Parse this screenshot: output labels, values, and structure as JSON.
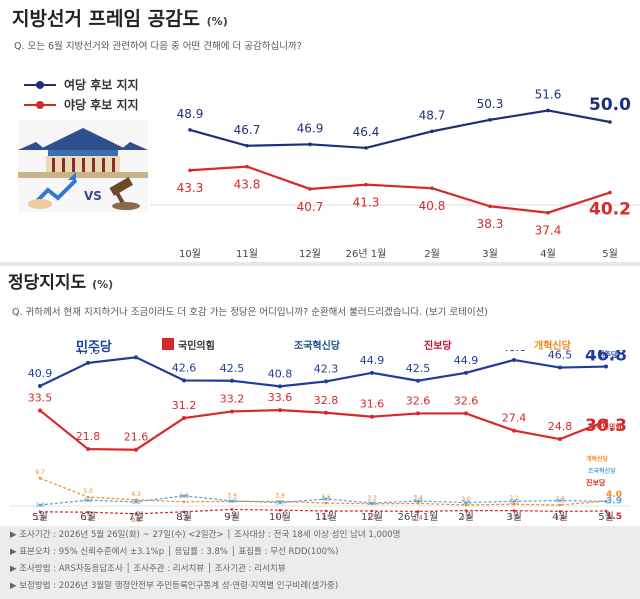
{
  "chart1": {
    "title": "지방선거 프레임 공감도",
    "unit": "(%)",
    "question": "Q. 오는 6월 지방선거와 관련하여 다음 중 어떤 견해에 더 공감하십니까?",
    "legend": [
      {
        "label": "여당 후보 지지",
        "color": "#1f2f7a"
      },
      {
        "label": "야당 후보 지지",
        "color": "#d62a2a"
      }
    ]
  },
  "chart2": {
    "title": "정당지지도",
    "unit": "(%)",
    "question": "Q. 귀하께서 현재 지지하거나 조금이라도 더 호감 가는 정당은 어디입니까? 순환해서 불러드리겠습니다. (보기 로테이션)",
    "parties": [
      {
        "label": "민주당",
        "color": "#1f3d9a"
      },
      {
        "label": "국민의힘",
        "color": "#d62a2a"
      },
      {
        "label": "조국혁신당",
        "color": "#1a4e8c"
      },
      {
        "label": "진보당",
        "color": "#c8102e"
      },
      {
        "label": "개혁신당",
        "color": "#f28c1e"
      }
    ],
    "end_labels": [
      {
        "label": "민주당",
        "color": "#1f3d9a"
      },
      {
        "label": "국민의힘",
        "color": "#d62a2a"
      },
      {
        "label": "조국혁신당",
        "color": "#5aa0d8"
      },
      {
        "label": "개혁신당",
        "color": "#f28c1e"
      },
      {
        "label": "진보당",
        "color": "#d62a2a"
      }
    ]
  },
  "chart_data": [
    {
      "type": "line",
      "title": "지방선거 프레임 공감도",
      "x": [
        "10월",
        "11월",
        "12월",
        "26년 1월",
        "2월",
        "3월",
        "4월",
        "5월"
      ],
      "series": [
        {
          "name": "여당 후보 지지",
          "color": "#1f2f7a",
          "values": [
            48.9,
            46.7,
            46.9,
            46.4,
            48.7,
            50.3,
            51.6,
            50.0
          ]
        },
        {
          "name": "야당 후보 지지",
          "color": "#d62a2a",
          "values": [
            43.3,
            43.8,
            40.7,
            41.3,
            40.8,
            38.3,
            37.4,
            40.2
          ]
        }
      ]
    },
    {
      "type": "line",
      "title": "정당지지도",
      "x": [
        "5월",
        "6월",
        "7월",
        "8월",
        "9월",
        "10월",
        "11월",
        "12월",
        "26년 1월",
        "2월",
        "3월",
        "4월",
        "5월"
      ],
      "series": [
        {
          "name": "민주당",
          "color": "#1f3d9a",
          "values": [
            40.9,
            47.9,
            49.6,
            42.6,
            42.5,
            40.8,
            42.3,
            44.9,
            42.5,
            44.9,
            48.8,
            46.5,
            46.8
          ]
        },
        {
          "name": "국민의힘",
          "color": "#d62a2a",
          "values": [
            33.5,
            21.8,
            21.6,
            31.2,
            33.2,
            33.6,
            32.8,
            31.6,
            32.6,
            32.6,
            27.4,
            24.8,
            30.3
          ]
        },
        {
          "name": "개혁신당",
          "color": "#f28c1e",
          "values": [
            9.7,
            5.0,
            4.3,
            3.8,
            3.9,
            3.9,
            3.5,
            3.3,
            3.4,
            3.0,
            3.2,
            3.0,
            4.0
          ]
        },
        {
          "name": "조국혁신당",
          "color": "#5aa0d8",
          "values": [
            3.0,
            4.2,
            3.8,
            5.3,
            4.0,
            3.6,
            4.5,
            3.5,
            4.0,
            3.6,
            3.9,
            4.1,
            3.9
          ]
        },
        {
          "name": "진보당",
          "color": "#d62a2a",
          "values": [
            1.3,
            1.2,
            0.8,
            1.3,
            1.9,
            1.7,
            1.5,
            1.5,
            1.4,
            1.6,
            1.6,
            1.4,
            1.5
          ]
        }
      ]
    }
  ],
  "footer": [
    "▶ 조사기간 : 2026년 5월 26일(화) ~ 27일(수) <2일간> │ 조사대상 : 전국 18세 이상 성인 남녀 1,000명",
    "▶ 표본오차 : 95% 신뢰수준에서 ±3.1%p │ 응답률 : 3.8% │ 표집틀 : 무선 RDD(100%)",
    "▶ 조사방법 : ARS자동응답조사 │ 조사주관 : 리서치뷰 │ 조사기관 : 리서치뷰",
    "▶ 보정방법 : 2026년 3월말 행정안전부 주민등록인구통계 성·연령·지역별 인구비례(셀가중)"
  ]
}
